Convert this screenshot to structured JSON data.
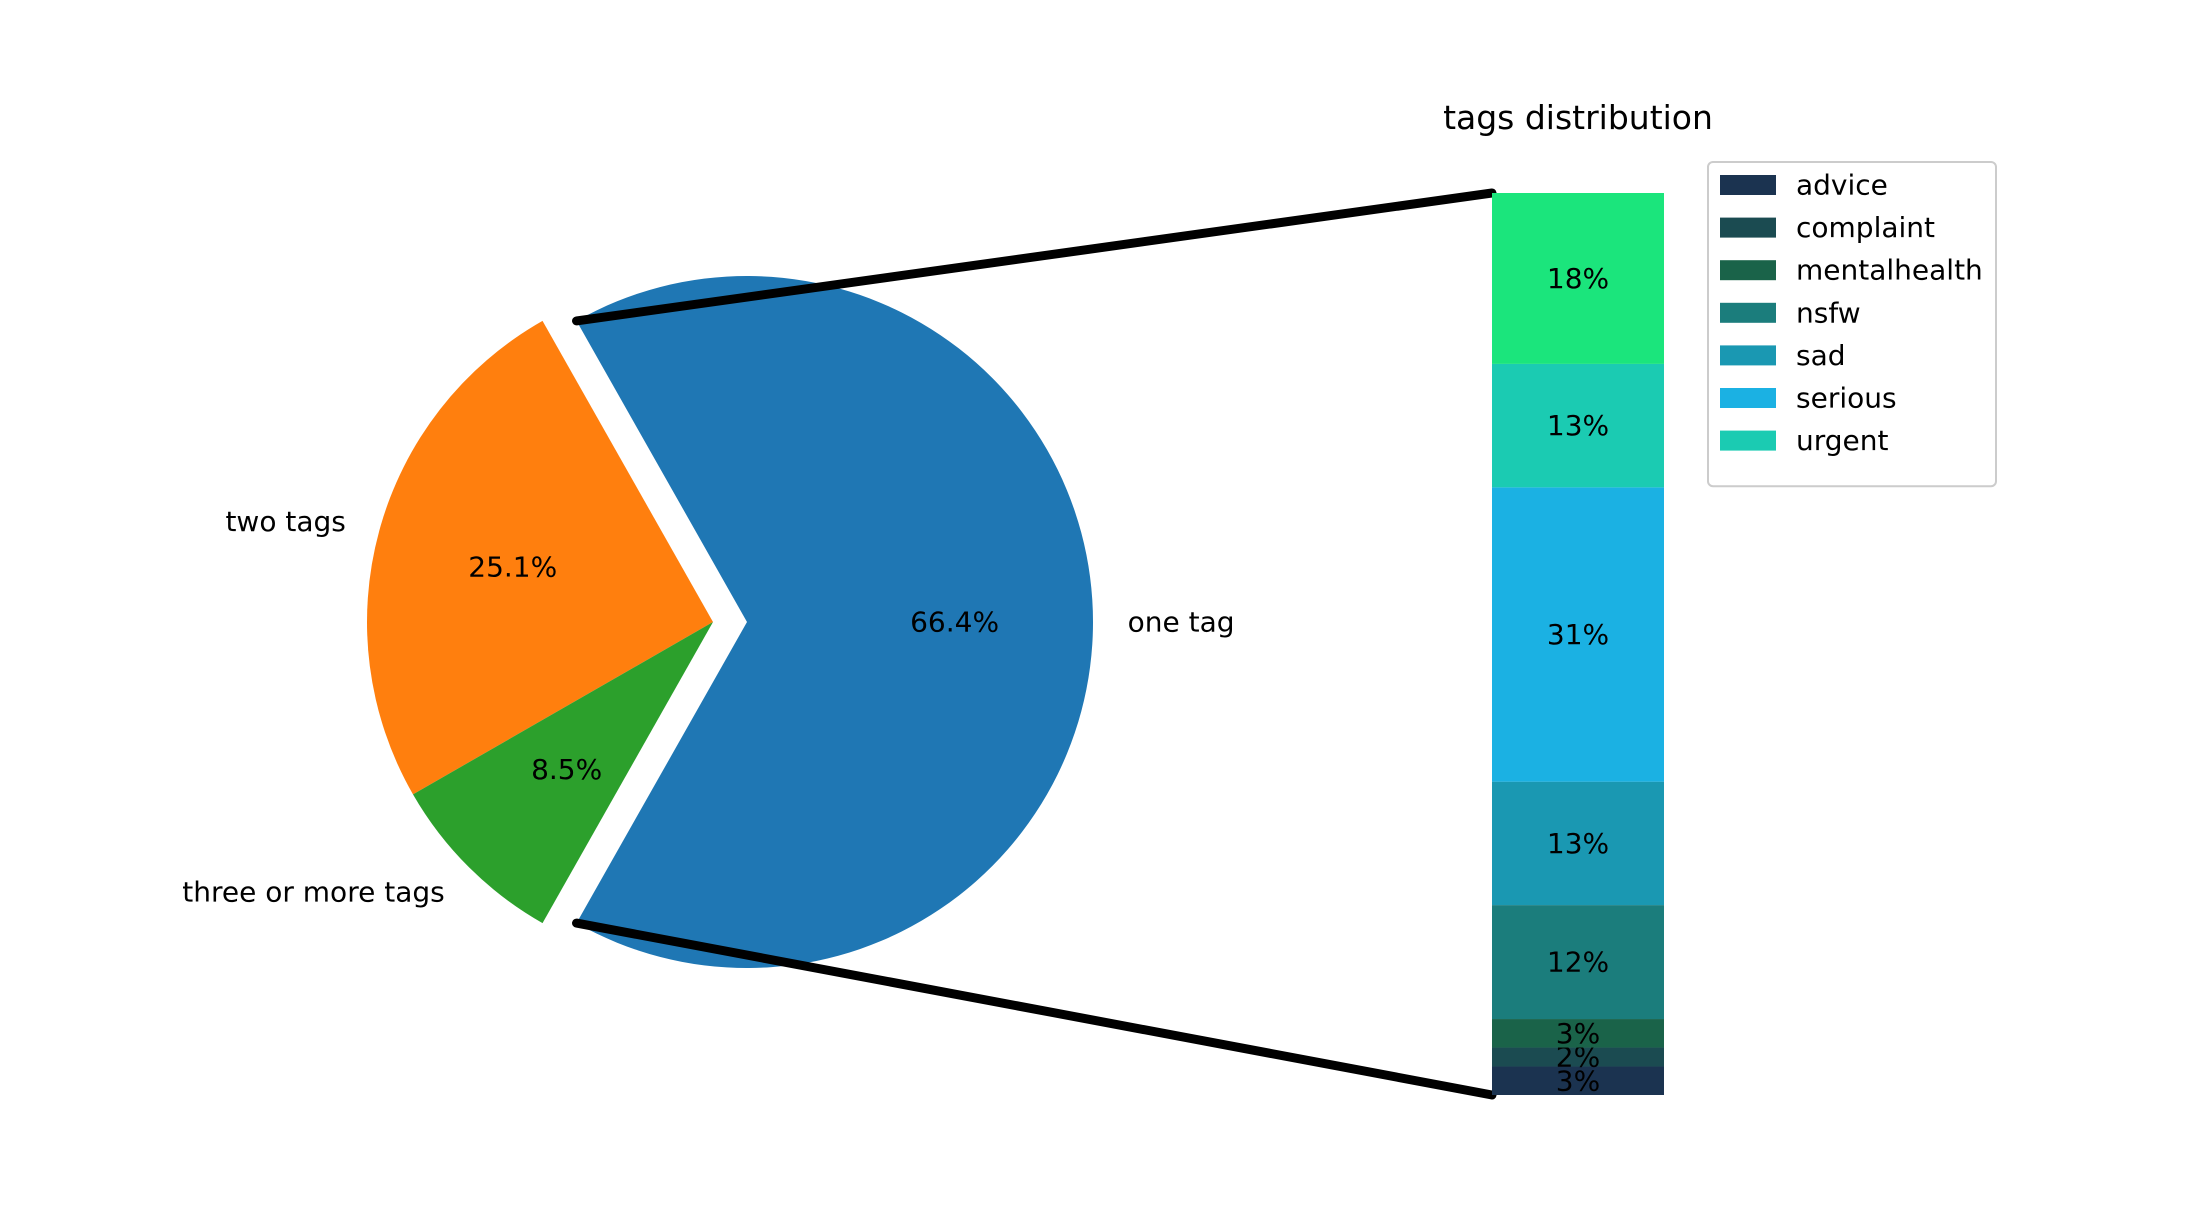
{
  "chart_data": [
    {
      "type": "pie",
      "slices": [
        {
          "label": "one tag",
          "value": 66.4,
          "pct_label": "66.4%",
          "color": "#1f77b4",
          "exploded": true
        },
        {
          "label": "two tags",
          "value": 25.1,
          "pct_label": "25.1%",
          "color": "#ff7f0e",
          "exploded": false
        },
        {
          "label": "three or more tags",
          "value": 8.5,
          "pct_label": "8.5%",
          "color": "#2ca02c",
          "exploded": false
        }
      ]
    },
    {
      "type": "bar",
      "stacked": true,
      "title": "tags distribution",
      "legend_position": "upper-right",
      "segments": [
        {
          "name": "advice",
          "value": 3,
          "label": "3%",
          "color": "#1b3350"
        },
        {
          "name": "complaint",
          "value": 2,
          "label": "2%",
          "color": "#1b4b51"
        },
        {
          "name": "mentalhealth",
          "value": 3,
          "label": "3%",
          "color": "#1a6349"
        },
        {
          "name": "nsfw",
          "value": 12,
          "label": "12%",
          "color": "#1b7d7c"
        },
        {
          "name": "sad",
          "value": 13,
          "label": "13%",
          "color": "#1a98b2"
        },
        {
          "name": "serious",
          "value": 31,
          "label": "31%",
          "color": "#1bb1e3"
        },
        {
          "name": "urgent",
          "value": 13,
          "label": "13%",
          "color": "#1bcbb2"
        },
        {
          "name": "",
          "value": 18,
          "label": "18%",
          "color": "#1be57c"
        }
      ]
    }
  ]
}
